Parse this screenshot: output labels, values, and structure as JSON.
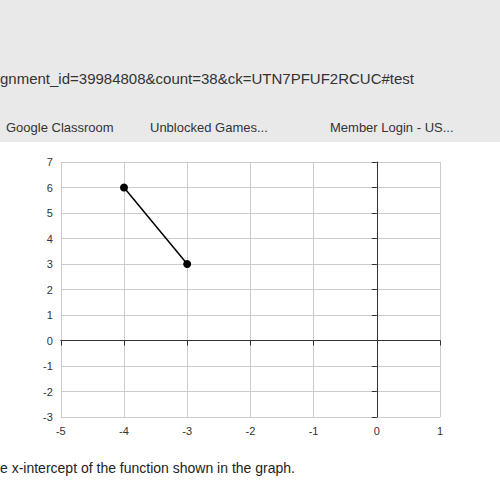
{
  "chart_data": {
    "type": "line",
    "annotations": [
      "gnment_id=39984808&count=38&ck=UTN7PFUF2RCUC#test",
      "Google Classroom",
      "Unblocked Games...",
      "Member Login - US...",
      "e x-intercept of the function shown in the graph."
    ],
    "x": [
      -4,
      -3
    ],
    "values": [
      6,
      3
    ],
    "color": "#000000",
    "marker": "circle",
    "xlim": [
      -5,
      1
    ],
    "xticks": [
      -5,
      -4,
      -3,
      -2,
      -1,
      0,
      1
    ],
    "ylim": [
      -3,
      7
    ],
    "yticks": [
      -3,
      -2,
      -1,
      0,
      1,
      2,
      3,
      4,
      5,
      6,
      7
    ],
    "grid": true
  }
}
